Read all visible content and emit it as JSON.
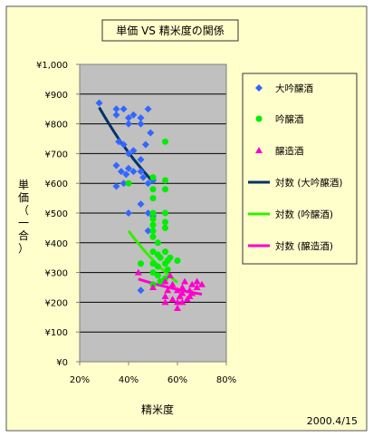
{
  "chart_data": {
    "type": "scatter",
    "title": "単価 VS 精米度の関係",
    "xlabel": "精米度",
    "ylabel": "単価（一合）",
    "date_note": "2000.4/15",
    "xlim": [
      0.2,
      0.8
    ],
    "ylim": [
      0,
      1000
    ],
    "x_ticks": [
      {
        "value": 0.2,
        "label": "20%"
      },
      {
        "value": 0.4,
        "label": "40%"
      },
      {
        "value": 0.6,
        "label": "60%"
      },
      {
        "value": 0.8,
        "label": "80%"
      }
    ],
    "y_ticks": [
      {
        "value": 0,
        "label": "¥0"
      },
      {
        "value": 100,
        "label": "¥100"
      },
      {
        "value": 200,
        "label": "¥200"
      },
      {
        "value": 300,
        "label": "¥300"
      },
      {
        "value": 400,
        "label": "¥400"
      },
      {
        "value": 500,
        "label": "¥500"
      },
      {
        "value": 600,
        "label": "¥600"
      },
      {
        "value": 700,
        "label": "¥700"
      },
      {
        "value": 800,
        "label": "¥800"
      },
      {
        "value": 900,
        "label": "¥900"
      },
      {
        "value": 1000,
        "label": "¥1,000"
      }
    ],
    "grid": true,
    "legend_position": "right",
    "series": [
      {
        "name": "大吟醸酒",
        "kind": "scatter",
        "marker": "diamond",
        "color": "#3366ff",
        "points": [
          [
            0.28,
            870
          ],
          [
            0.35,
            850
          ],
          [
            0.35,
            830
          ],
          [
            0.38,
            850
          ],
          [
            0.4,
            820
          ],
          [
            0.4,
            800
          ],
          [
            0.42,
            830
          ],
          [
            0.45,
            820
          ],
          [
            0.45,
            800
          ],
          [
            0.48,
            850
          ],
          [
            0.49,
            770
          ],
          [
            0.36,
            740
          ],
          [
            0.38,
            730
          ],
          [
            0.4,
            700
          ],
          [
            0.42,
            710
          ],
          [
            0.45,
            680
          ],
          [
            0.47,
            730
          ],
          [
            0.35,
            660
          ],
          [
            0.37,
            640
          ],
          [
            0.39,
            630
          ],
          [
            0.4,
            650
          ],
          [
            0.42,
            640
          ],
          [
            0.45,
            640
          ],
          [
            0.46,
            620
          ],
          [
            0.48,
            600
          ],
          [
            0.5,
            610
          ],
          [
            0.35,
            590
          ],
          [
            0.38,
            600
          ],
          [
            0.4,
            500
          ],
          [
            0.45,
            530
          ],
          [
            0.48,
            500
          ],
          [
            0.5,
            490
          ],
          [
            0.48,
            440
          ],
          [
            0.45,
            240
          ],
          [
            0.5,
            610
          ]
        ]
      },
      {
        "name": "吟醸酒",
        "kind": "scatter",
        "marker": "circle",
        "color": "#00ee00",
        "points": [
          [
            0.4,
            600
          ],
          [
            0.45,
            330
          ],
          [
            0.5,
            620
          ],
          [
            0.5,
            580
          ],
          [
            0.5,
            550
          ],
          [
            0.5,
            500
          ],
          [
            0.5,
            480
          ],
          [
            0.5,
            460
          ],
          [
            0.5,
            440
          ],
          [
            0.5,
            420
          ],
          [
            0.52,
            400
          ],
          [
            0.5,
            370
          ],
          [
            0.52,
            360
          ],
          [
            0.53,
            350
          ],
          [
            0.55,
            370
          ],
          [
            0.55,
            330
          ],
          [
            0.56,
            310
          ],
          [
            0.55,
            500
          ],
          [
            0.55,
            470
          ],
          [
            0.55,
            450
          ],
          [
            0.55,
            740
          ],
          [
            0.55,
            610
          ],
          [
            0.55,
            580
          ],
          [
            0.6,
            340
          ],
          [
            0.5,
            330
          ],
          [
            0.5,
            300
          ],
          [
            0.52,
            290
          ],
          [
            0.53,
            270
          ],
          [
            0.5,
            260
          ],
          [
            0.55,
            280
          ],
          [
            0.52,
            320
          ],
          [
            0.56,
            340
          ],
          [
            0.57,
            350
          ]
        ]
      },
      {
        "name": "醸造酒",
        "kind": "scatter",
        "marker": "triangle",
        "color": "#ff00cc",
        "points": [
          [
            0.44,
            300
          ],
          [
            0.5,
            250
          ],
          [
            0.55,
            270
          ],
          [
            0.56,
            240
          ],
          [
            0.55,
            220
          ],
          [
            0.58,
            210
          ],
          [
            0.6,
            200
          ],
          [
            0.6,
            180
          ],
          [
            0.61,
            220
          ],
          [
            0.62,
            250
          ],
          [
            0.63,
            270
          ],
          [
            0.65,
            240
          ],
          [
            0.65,
            220
          ],
          [
            0.66,
            260
          ],
          [
            0.68,
            250
          ],
          [
            0.68,
            270
          ],
          [
            0.7,
            260
          ],
          [
            0.62,
            200
          ],
          [
            0.58,
            260
          ],
          [
            0.6,
            240
          ],
          [
            0.64,
            210
          ],
          [
            0.66,
            230
          ],
          [
            0.55,
            200
          ],
          [
            0.57,
            290
          ],
          [
            0.62,
            230
          ]
        ]
      },
      {
        "name": "対数 (大吟醸酒)",
        "kind": "trend",
        "color": "#003366",
        "x": [
          0.28,
          0.3,
          0.32,
          0.34,
          0.36,
          0.38,
          0.4,
          0.42,
          0.44,
          0.46,
          0.48,
          0.5
        ],
        "y": [
          855,
          827,
          800,
          774,
          749,
          726,
          704,
          682,
          662,
          642,
          623,
          605
        ]
      },
      {
        "name": "対数 (吟醸酒)",
        "kind": "trend",
        "color": "#33ee00",
        "x": [
          0.4,
          0.42,
          0.44,
          0.46,
          0.48,
          0.5,
          0.52,
          0.54,
          0.56,
          0.58,
          0.6
        ],
        "y": [
          440,
          418,
          398,
          378,
          359,
          342,
          325,
          309,
          294,
          280,
          266
        ]
      },
      {
        "name": "対数 (醸造酒)",
        "kind": "trend",
        "color": "#ff00cc",
        "x": [
          0.44,
          0.48,
          0.52,
          0.56,
          0.6,
          0.64,
          0.68,
          0.7
        ],
        "y": [
          278,
          268,
          259,
          251,
          243,
          236,
          230,
          227
        ]
      }
    ]
  }
}
